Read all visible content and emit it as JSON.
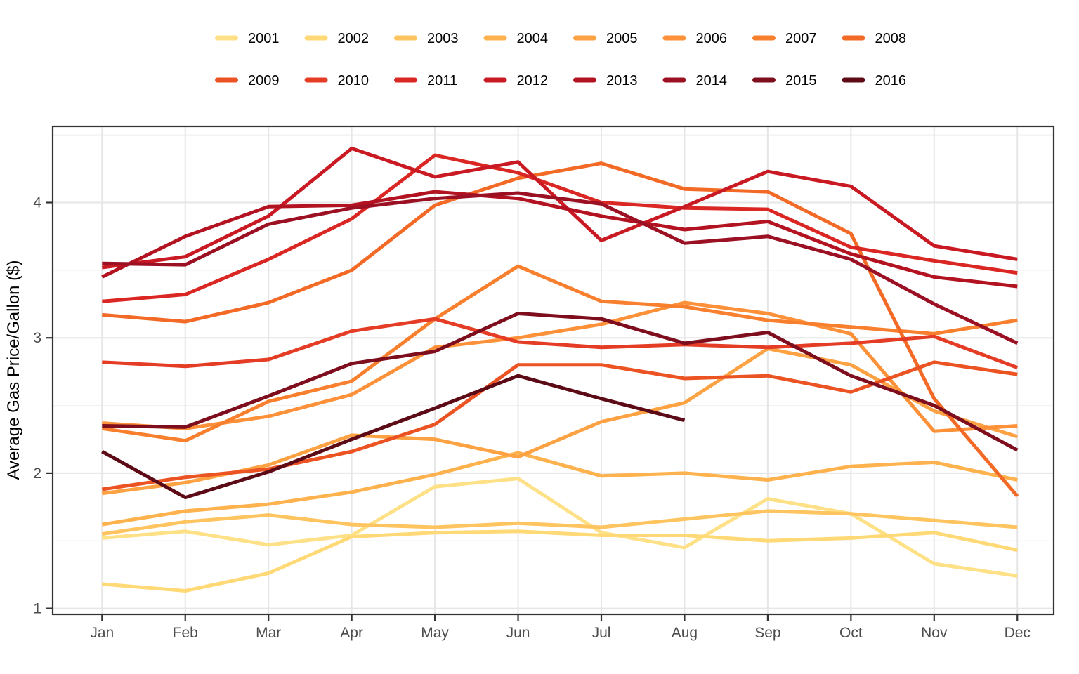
{
  "chart_data": {
    "type": "line",
    "title": "",
    "xlabel": "",
    "ylabel": "Average Gas Price/Gallon ($)",
    "categories": [
      "Jan",
      "Feb",
      "Mar",
      "Apr",
      "May",
      "Jun",
      "Jul",
      "Aug",
      "Sep",
      "Oct",
      "Nov",
      "Dec"
    ],
    "y_ticks": [
      1,
      2,
      3,
      4
    ],
    "ylim": [
      0.95,
      4.55
    ],
    "grid": true,
    "legend_position": "top",
    "series": [
      {
        "name": "2001",
        "color": "#FEE187",
        "values": [
          1.52,
          1.57,
          1.47,
          1.54,
          1.9,
          1.96,
          1.56,
          1.45,
          1.81,
          1.7,
          1.33,
          1.24
        ]
      },
      {
        "name": "2002",
        "color": "#FED976",
        "values": [
          1.18,
          1.13,
          1.26,
          1.53,
          1.56,
          1.57,
          1.54,
          1.54,
          1.5,
          1.52,
          1.56,
          1.43
        ]
      },
      {
        "name": "2003",
        "color": "#FEC460",
        "values": [
          1.55,
          1.64,
          1.69,
          1.62,
          1.6,
          1.63,
          1.6,
          1.66,
          1.72,
          1.7,
          1.65,
          1.6
        ]
      },
      {
        "name": "2004",
        "color": "#FDB24E",
        "values": [
          1.62,
          1.72,
          1.77,
          1.86,
          1.99,
          2.15,
          1.98,
          2.0,
          1.95,
          2.05,
          2.08,
          1.95
        ]
      },
      {
        "name": "2005",
        "color": "#FDA243",
        "values": [
          1.85,
          1.93,
          2.06,
          2.28,
          2.25,
          2.12,
          2.38,
          2.52,
          2.92,
          2.8,
          2.46,
          2.27
        ]
      },
      {
        "name": "2006",
        "color": "#FD9139",
        "values": [
          2.37,
          2.33,
          2.42,
          2.58,
          2.93,
          3.0,
          3.1,
          3.26,
          3.18,
          3.03,
          2.31,
          2.35
        ]
      },
      {
        "name": "2007",
        "color": "#F87F2D",
        "values": [
          2.33,
          2.24,
          2.53,
          2.68,
          3.14,
          3.53,
          3.27,
          3.23,
          3.13,
          3.08,
          3.03,
          3.13
        ]
      },
      {
        "name": "2008",
        "color": "#F26A26",
        "values": [
          3.17,
          3.12,
          3.26,
          3.5,
          3.98,
          4.18,
          4.29,
          4.1,
          4.08,
          3.77,
          2.55,
          1.83
        ]
      },
      {
        "name": "2009",
        "color": "#EB5323",
        "values": [
          1.88,
          1.97,
          2.03,
          2.16,
          2.36,
          2.8,
          2.8,
          2.7,
          2.72,
          2.6,
          2.82,
          2.73
        ]
      },
      {
        "name": "2010",
        "color": "#E43C25",
        "values": [
          2.82,
          2.79,
          2.84,
          3.05,
          3.14,
          2.97,
          2.93,
          2.95,
          2.93,
          2.96,
          3.01,
          2.78
        ]
      },
      {
        "name": "2011",
        "color": "#DA2723",
        "values": [
          3.27,
          3.32,
          3.58,
          3.88,
          4.35,
          4.22,
          4.0,
          3.96,
          3.95,
          3.67,
          3.57,
          3.48
        ]
      },
      {
        "name": "2012",
        "color": "#C91922",
        "values": [
          3.52,
          3.6,
          3.9,
          4.4,
          4.19,
          4.3,
          3.72,
          3.97,
          4.23,
          4.12,
          3.68,
          3.58
        ]
      },
      {
        "name": "2013",
        "color": "#B31321",
        "values": [
          3.45,
          3.75,
          3.97,
          3.98,
          4.08,
          4.03,
          3.9,
          3.8,
          3.86,
          3.62,
          3.45,
          3.38
        ]
      },
      {
        "name": "2014",
        "color": "#9C1023",
        "values": [
          3.55,
          3.54,
          3.84,
          3.96,
          4.03,
          4.07,
          3.99,
          3.7,
          3.75,
          3.58,
          3.25,
          2.96
        ]
      },
      {
        "name": "2015",
        "color": "#7E0D1D",
        "values": [
          2.35,
          2.34,
          2.57,
          2.81,
          2.9,
          3.18,
          3.14,
          2.96,
          3.04,
          2.72,
          2.5,
          2.17
        ]
      },
      {
        "name": "2016",
        "color": "#5C0B16",
        "values": [
          2.16,
          1.82,
          2.01,
          2.25,
          2.48,
          2.72,
          2.55,
          2.39,
          null,
          null,
          null,
          null
        ]
      }
    ]
  },
  "style_colors": {
    "panel_border": "#333333",
    "major_grid": "#E6E6E6",
    "minor_grid": "#F1F1F1",
    "tick_mark": "#333333",
    "tick_label": "#4D4D4D",
    "axis_title": "#000000",
    "legend_text": "#000000"
  }
}
